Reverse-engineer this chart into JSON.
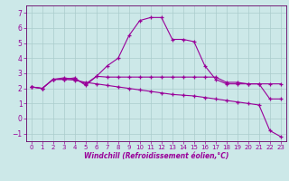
{
  "xlabel": "Windchill (Refroidissement éolien,°C)",
  "background_color": "#cce8e8",
  "grid_color": "#aacccc",
  "line_color": "#990099",
  "spine_color": "#660066",
  "xlim": [
    -0.5,
    23.5
  ],
  "ylim": [
    -1.5,
    7.5
  ],
  "xticks": [
    0,
    1,
    2,
    3,
    4,
    5,
    6,
    7,
    8,
    9,
    10,
    11,
    12,
    13,
    14,
    15,
    16,
    17,
    18,
    19,
    20,
    21,
    22,
    23
  ],
  "yticks": [
    -1,
    0,
    1,
    2,
    3,
    4,
    5,
    6,
    7
  ],
  "series": [
    [
      2.1,
      2.0,
      2.6,
      2.6,
      2.7,
      2.2,
      2.8,
      3.5,
      4.0,
      5.5,
      6.5,
      6.7,
      6.7,
      5.25,
      5.25,
      5.1,
      3.5,
      2.6,
      2.3,
      2.3,
      2.3,
      2.3,
      1.3,
      1.3
    ],
    [
      2.1,
      2.0,
      2.6,
      2.7,
      2.6,
      2.3,
      2.8,
      2.75,
      2.75,
      2.75,
      2.75,
      2.75,
      2.75,
      2.75,
      2.75,
      2.75,
      2.75,
      2.75,
      2.4,
      2.4,
      2.3,
      2.3,
      2.3,
      2.3
    ],
    [
      2.1,
      2.0,
      2.6,
      2.6,
      2.55,
      2.4,
      2.3,
      2.2,
      2.1,
      2.0,
      1.9,
      1.8,
      1.7,
      1.6,
      1.55,
      1.5,
      1.4,
      1.3,
      1.2,
      1.1,
      1.0,
      0.9,
      -0.8,
      -1.2
    ]
  ]
}
